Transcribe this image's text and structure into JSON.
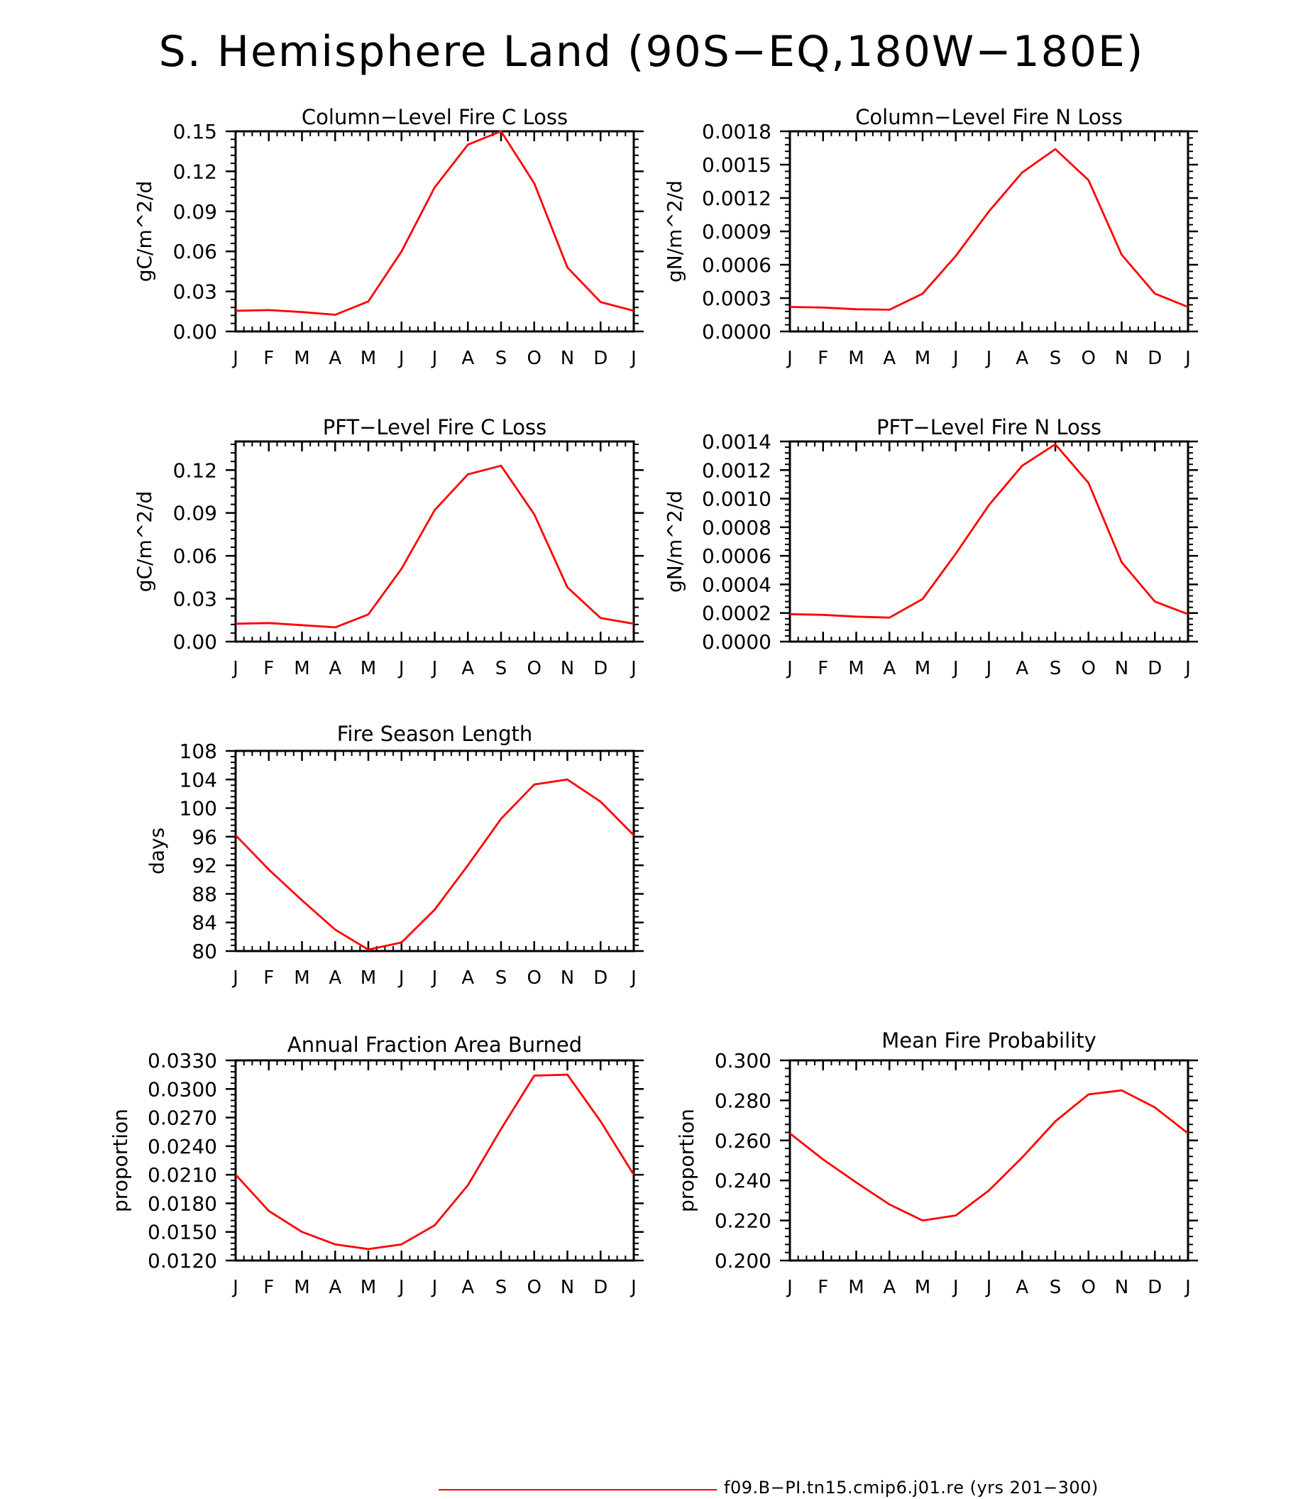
{
  "page_title": "S. Hemisphere Land (90S−EQ,180W−180E)",
  "legend": {
    "label": "f09.B−PI.tn15.cmip6.j01.re (yrs 201−300)"
  },
  "colors": {
    "series": "#ff0000",
    "axes": "#000000",
    "background": "#ffffff"
  },
  "chart_data": [
    {
      "type": "line",
      "title": "Column−Level Fire C Loss",
      "ylabel": "gC/m^2/d",
      "xlabel": "",
      "categories": [
        "J",
        "F",
        "M",
        "A",
        "M",
        "J",
        "J",
        "A",
        "S",
        "O",
        "N",
        "D",
        "J"
      ],
      "ylim": [
        0,
        0.15
      ],
      "yticks": [
        "0.00",
        "0.03",
        "0.06",
        "0.09",
        "0.12",
        "0.15"
      ],
      "values": [
        0.0155,
        0.016,
        0.0145,
        0.0125,
        0.0225,
        0.06,
        0.108,
        0.14,
        0.15,
        0.111,
        0.048,
        0.022,
        0.0155
      ]
    },
    {
      "type": "line",
      "title": "Column−Level Fire N Loss",
      "ylabel": "gN/m^2/d",
      "xlabel": "",
      "categories": [
        "J",
        "F",
        "M",
        "A",
        "M",
        "J",
        "J",
        "A",
        "S",
        "O",
        "N",
        "D",
        "J"
      ],
      "ylim": [
        0,
        0.0018
      ],
      "yticks": [
        "0.0000",
        "0.0003",
        "0.0006",
        "0.0009",
        "0.0012",
        "0.0015",
        "0.0018"
      ],
      "values": [
        0.00022,
        0.000215,
        0.0002,
        0.000195,
        0.00034,
        0.00068,
        0.00108,
        0.00143,
        0.00164,
        0.00136,
        0.00069,
        0.00034,
        0.00022
      ]
    },
    {
      "type": "line",
      "title": "PFT−Level Fire C Loss",
      "ylabel": "gC/m^2/d",
      "xlabel": "",
      "categories": [
        "J",
        "F",
        "M",
        "A",
        "M",
        "J",
        "J",
        "A",
        "S",
        "O",
        "N",
        "D",
        "J"
      ],
      "ylim": [
        0,
        0.14
      ],
      "yticks": [
        "0.00",
        "0.03",
        "0.06",
        "0.09",
        "0.12"
      ],
      "values": [
        0.0125,
        0.013,
        0.0115,
        0.01,
        0.019,
        0.051,
        0.092,
        0.117,
        0.123,
        0.089,
        0.038,
        0.0165,
        0.0125
      ]
    },
    {
      "type": "line",
      "title": "PFT−Level Fire N Loss",
      "ylabel": "gN/m^2/d",
      "xlabel": "",
      "categories": [
        "J",
        "F",
        "M",
        "A",
        "M",
        "J",
        "J",
        "A",
        "S",
        "O",
        "N",
        "D",
        "J"
      ],
      "ylim": [
        0,
        0.0014
      ],
      "yticks": [
        "0.0000",
        "0.0002",
        "0.0004",
        "0.0006",
        "0.0008",
        "0.0010",
        "0.0012",
        "0.0014"
      ],
      "values": [
        0.000192,
        0.000187,
        0.000175,
        0.000168,
        0.000298,
        0.000615,
        0.000955,
        0.00123,
        0.00138,
        0.00111,
        0.000555,
        0.00028,
        0.000192
      ]
    },
    {
      "type": "line",
      "title": "Fire Season Length",
      "ylabel": "days",
      "xlabel": "",
      "categories": [
        "J",
        "F",
        "M",
        "A",
        "M",
        "J",
        "J",
        "A",
        "S",
        "O",
        "N",
        "D",
        "J"
      ],
      "ylim": [
        80,
        108
      ],
      "yticks": [
        "80",
        "84",
        "88",
        "92",
        "96",
        "100",
        "104",
        "108"
      ],
      "values": [
        96.2,
        91.4,
        87.1,
        83.0,
        80.2,
        81.2,
        85.8,
        92.0,
        98.5,
        103.3,
        104.0,
        100.9,
        96.2
      ]
    },
    {
      "type": "line",
      "title": "Annual Fraction Area Burned",
      "ylabel": "proportion",
      "xlabel": "",
      "categories": [
        "J",
        "F",
        "M",
        "A",
        "M",
        "J",
        "J",
        "A",
        "S",
        "O",
        "N",
        "D",
        "J"
      ],
      "ylim": [
        0.012,
        0.033
      ],
      "yticks": [
        "0.0120",
        "0.0150",
        "0.0180",
        "0.0210",
        "0.0240",
        "0.0270",
        "0.0300",
        "0.0330"
      ],
      "values": [
        0.021,
        0.0172,
        0.015,
        0.0137,
        0.0132,
        0.0137,
        0.0157,
        0.0199,
        0.0258,
        0.0314,
        0.0315,
        0.0266,
        0.021
      ]
    },
    {
      "type": "line",
      "title": "Mean Fire Probability",
      "ylabel": "proportion",
      "xlabel": "",
      "categories": [
        "J",
        "F",
        "M",
        "A",
        "M",
        "J",
        "J",
        "A",
        "S",
        "O",
        "N",
        "D",
        "J"
      ],
      "ylim": [
        0.2,
        0.3
      ],
      "yticks": [
        "0.200",
        "0.220",
        "0.240",
        "0.260",
        "0.280",
        "0.300"
      ],
      "values": [
        0.2635,
        0.2505,
        0.239,
        0.228,
        0.22,
        0.2225,
        0.235,
        0.2515,
        0.2695,
        0.283,
        0.285,
        0.2765,
        0.2635
      ]
    }
  ]
}
